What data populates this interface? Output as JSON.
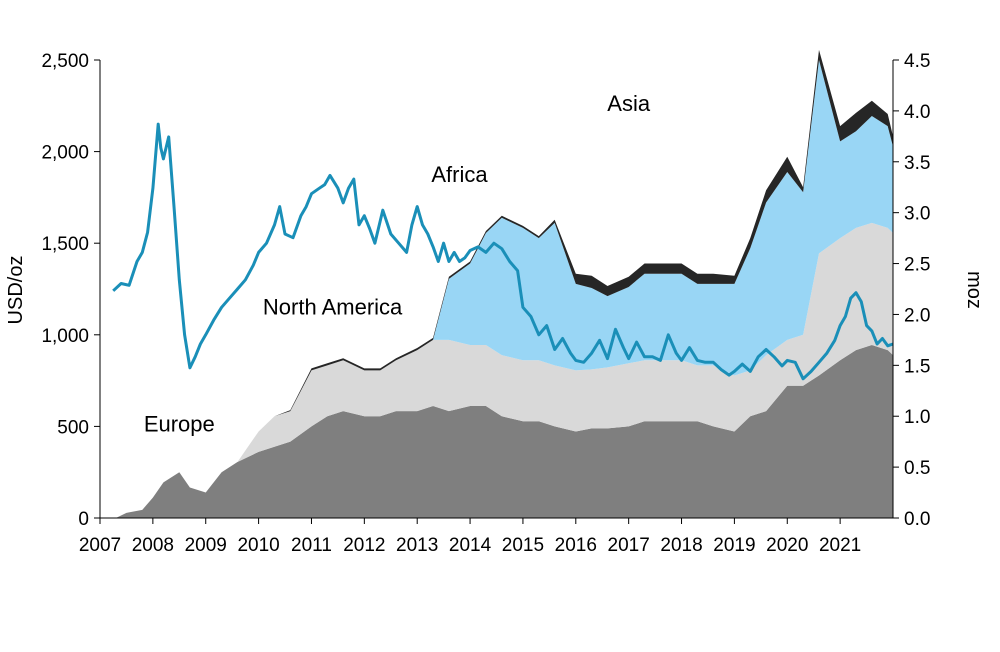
{
  "chart_data": {
    "type": "area",
    "title": "",
    "x_unit": "year (decimal)",
    "xlim": [
      2007,
      2022
    ],
    "x_ticks": [
      "2007",
      "2008",
      "2009",
      "2010",
      "2011",
      "2012",
      "2013",
      "2014",
      "2015",
      "2016",
      "2017",
      "2018",
      "2019",
      "2020",
      "2021"
    ],
    "y_left": {
      "label": "USD/oz",
      "ylim": [
        0,
        2500
      ],
      "ticks": [
        "0",
        "500",
        "1,000",
        "1,500",
        "2,000",
        "2,500"
      ]
    },
    "y_right": {
      "label": "moz",
      "ylim": [
        0,
        4.5
      ],
      "ticks": [
        "0.0",
        "0.5",
        "1.0",
        "1.5",
        "2.0",
        "2.5",
        "3.0",
        "3.5",
        "4.0",
        "4.5"
      ]
    },
    "legend": "none (inline labels)",
    "grid": false,
    "annotations": [
      {
        "text": "Asia",
        "x": 2017.0,
        "y": 4.0
      },
      {
        "text": "Africa",
        "x": 2013.8,
        "y": 3.3
      },
      {
        "text": "North America",
        "x": 2011.4,
        "y": 2.0
      },
      {
        "text": "Europe",
        "x": 2008.5,
        "y": 0.85
      }
    ],
    "stack_series": [
      {
        "name": "Europe",
        "color": "#7f7f7f",
        "x": [
          2007.3,
          2007.5,
          2007.8,
          2008.0,
          2008.2,
          2008.5,
          2008.7,
          2009.0,
          2009.3,
          2009.6,
          2010.0,
          2010.3,
          2010.6,
          2011.0,
          2011.3,
          2011.6,
          2012.0,
          2012.3,
          2012.6,
          2013.0,
          2013.3,
          2013.6,
          2014.0,
          2014.3,
          2014.6,
          2015.0,
          2015.3,
          2015.6,
          2016.0,
          2016.3,
          2016.6,
          2017.0,
          2017.3,
          2017.6,
          2018.0,
          2018.3,
          2018.6,
          2019.0,
          2019.3,
          2019.6,
          2020.0,
          2020.3,
          2020.6,
          2021.0,
          2021.3,
          2021.6,
          2021.9,
          2022.0
        ],
        "values": [
          0.0,
          0.05,
          0.08,
          0.2,
          0.35,
          0.45,
          0.3,
          0.25,
          0.45,
          0.55,
          0.65,
          0.7,
          0.75,
          0.9,
          1.0,
          1.05,
          1.0,
          1.0,
          1.05,
          1.05,
          1.1,
          1.05,
          1.1,
          1.1,
          1.0,
          0.95,
          0.95,
          0.9,
          0.85,
          0.88,
          0.88,
          0.9,
          0.95,
          0.95,
          0.95,
          0.95,
          0.9,
          0.85,
          1.0,
          1.05,
          1.3,
          1.3,
          1.4,
          1.55,
          1.65,
          1.7,
          1.65,
          1.6
        ]
      },
      {
        "name": "North America",
        "color": "#d9d9d9",
        "x": [
          2007.3,
          2007.5,
          2007.8,
          2008.0,
          2008.2,
          2008.5,
          2008.7,
          2009.0,
          2009.3,
          2009.6,
          2010.0,
          2010.3,
          2010.6,
          2011.0,
          2011.3,
          2011.6,
          2012.0,
          2012.3,
          2012.6,
          2013.0,
          2013.3,
          2013.6,
          2014.0,
          2014.3,
          2014.6,
          2015.0,
          2015.3,
          2015.6,
          2016.0,
          2016.3,
          2016.6,
          2017.0,
          2017.3,
          2017.6,
          2018.0,
          2018.3,
          2018.6,
          2019.0,
          2019.3,
          2019.6,
          2020.0,
          2020.3,
          2020.6,
          2021.0,
          2021.3,
          2021.6,
          2021.9,
          2022.0
        ],
        "values": [
          0.0,
          0.0,
          0.0,
          0.0,
          0.0,
          0.0,
          0.0,
          0.0,
          0.0,
          0.0,
          0.2,
          0.3,
          0.3,
          0.55,
          0.5,
          0.5,
          0.45,
          0.45,
          0.5,
          0.6,
          0.65,
          0.7,
          0.6,
          0.6,
          0.6,
          0.6,
          0.6,
          0.6,
          0.6,
          0.58,
          0.6,
          0.62,
          0.6,
          0.6,
          0.6,
          0.55,
          0.6,
          0.55,
          0.45,
          0.55,
          0.45,
          0.5,
          1.2,
          1.2,
          1.2,
          1.2,
          1.2,
          1.2
        ]
      },
      {
        "name": "Africa",
        "color": "#99d6f5",
        "x": [
          2007.3,
          2007.5,
          2007.8,
          2008.0,
          2008.2,
          2008.5,
          2008.7,
          2009.0,
          2009.3,
          2009.6,
          2010.0,
          2010.3,
          2010.6,
          2011.0,
          2011.3,
          2011.6,
          2012.0,
          2012.3,
          2012.6,
          2013.0,
          2013.3,
          2013.6,
          2014.0,
          2014.3,
          2014.6,
          2015.0,
          2015.3,
          2015.6,
          2016.0,
          2016.3,
          2016.6,
          2017.0,
          2017.3,
          2017.6,
          2018.0,
          2018.3,
          2018.6,
          2019.0,
          2019.3,
          2019.6,
          2020.0,
          2020.3,
          2020.6,
          2021.0,
          2021.3,
          2021.6,
          2021.9,
          2022.0
        ],
        "values": [
          0,
          0,
          0,
          0,
          0,
          0,
          0,
          0,
          0,
          0,
          0,
          0,
          0,
          0,
          0,
          0,
          0,
          0,
          0,
          0,
          0,
          0.6,
          0.8,
          1.1,
          1.35,
          1.3,
          1.2,
          1.4,
          0.85,
          0.8,
          0.7,
          0.75,
          0.85,
          0.85,
          0.85,
          0.8,
          0.8,
          0.9,
          1.2,
          1.5,
          1.65,
          1.4,
          1.9,
          0.95,
          0.95,
          1.05,
          1.0,
          0.85
        ]
      },
      {
        "name": "Asia",
        "color": "#262626",
        "x": [
          2007.3,
          2007.5,
          2007.8,
          2008.0,
          2008.2,
          2008.5,
          2008.7,
          2009.0,
          2009.3,
          2009.6,
          2010.0,
          2010.3,
          2010.6,
          2011.0,
          2011.3,
          2011.6,
          2012.0,
          2012.3,
          2012.6,
          2013.0,
          2013.3,
          2013.6,
          2014.0,
          2014.3,
          2014.6,
          2015.0,
          2015.3,
          2015.6,
          2016.0,
          2016.3,
          2016.6,
          2017.0,
          2017.3,
          2017.6,
          2018.0,
          2018.3,
          2018.6,
          2019.0,
          2019.3,
          2019.6,
          2020.0,
          2020.3,
          2020.6,
          2021.0,
          2021.3,
          2021.6,
          2021.9,
          2022.0
        ],
        "values": [
          0,
          0,
          0,
          0,
          0,
          0,
          0,
          0,
          0,
          0,
          0,
          0,
          0.01,
          0.02,
          0.02,
          0.02,
          0.02,
          0.02,
          0.02,
          0.02,
          0.02,
          0.02,
          0.02,
          0.02,
          0.02,
          0.02,
          0.02,
          0.03,
          0.1,
          0.12,
          0.1,
          0.1,
          0.1,
          0.1,
          0.1,
          0.1,
          0.1,
          0.08,
          0.1,
          0.12,
          0.15,
          0.05,
          0.1,
          0.15,
          0.18,
          0.15,
          0.12,
          0.1
        ]
      }
    ],
    "price_series": {
      "name": "",
      "axis": "left",
      "color": "#1a8fb8",
      "unit": "USD/oz",
      "x": [
        2007.25,
        2007.4,
        2007.55,
        2007.7,
        2007.8,
        2007.9,
        2008.0,
        2008.1,
        2008.15,
        2008.2,
        2008.3,
        2008.4,
        2008.5,
        2008.6,
        2008.7,
        2008.8,
        2008.9,
        2009.0,
        2009.15,
        2009.3,
        2009.45,
        2009.6,
        2009.75,
        2009.9,
        2010.0,
        2010.15,
        2010.3,
        2010.4,
        2010.5,
        2010.65,
        2010.8,
        2010.9,
        2011.0,
        2011.15,
        2011.25,
        2011.35,
        2011.5,
        2011.6,
        2011.7,
        2011.8,
        2011.9,
        2012.0,
        2012.1,
        2012.2,
        2012.35,
        2012.5,
        2012.65,
        2012.8,
        2012.9,
        2013.0,
        2013.1,
        2013.2,
        2013.3,
        2013.4,
        2013.5,
        2013.6,
        2013.7,
        2013.8,
        2013.9,
        2014.0,
        2014.15,
        2014.3,
        2014.45,
        2014.6,
        2014.75,
        2014.9,
        2015.0,
        2015.15,
        2015.3,
        2015.45,
        2015.6,
        2015.75,
        2015.9,
        2016.0,
        2016.15,
        2016.3,
        2016.45,
        2016.6,
        2016.75,
        2016.9,
        2017.0,
        2017.15,
        2017.3,
        2017.45,
        2017.6,
        2017.75,
        2017.9,
        2018.0,
        2018.15,
        2018.3,
        2018.45,
        2018.6,
        2018.75,
        2018.9,
        2019.0,
        2019.15,
        2019.3,
        2019.45,
        2019.6,
        2019.75,
        2019.9,
        2020.0,
        2020.15,
        2020.3,
        2020.45,
        2020.6,
        2020.75,
        2020.9,
        2021.0,
        2021.1,
        2021.2,
        2021.3,
        2021.4,
        2021.5,
        2021.6,
        2021.7,
        2021.8,
        2021.9,
        2022.0
      ],
      "values": [
        1240,
        1280,
        1270,
        1400,
        1450,
        1560,
        1800,
        2150,
        2020,
        1960,
        2080,
        1700,
        1300,
        1000,
        820,
        880,
        950,
        1000,
        1080,
        1150,
        1200,
        1250,
        1300,
        1380,
        1450,
        1500,
        1600,
        1700,
        1550,
        1530,
        1650,
        1700,
        1770,
        1800,
        1820,
        1870,
        1800,
        1720,
        1800,
        1850,
        1600,
        1650,
        1580,
        1500,
        1680,
        1550,
        1500,
        1450,
        1600,
        1700,
        1600,
        1550,
        1480,
        1400,
        1500,
        1400,
        1450,
        1400,
        1420,
        1460,
        1480,
        1450,
        1500,
        1470,
        1400,
        1350,
        1150,
        1100,
        1000,
        1050,
        920,
        980,
        900,
        860,
        850,
        900,
        970,
        870,
        1030,
        930,
        870,
        960,
        880,
        880,
        860,
        1000,
        900,
        860,
        930,
        860,
        850,
        850,
        810,
        780,
        800,
        840,
        800,
        880,
        920,
        880,
        830,
        860,
        850,
        760,
        800,
        850,
        900,
        970,
        1050,
        1100,
        1200,
        1230,
        1180,
        1050,
        1020,
        950,
        980,
        940,
        950
      ]
    }
  }
}
